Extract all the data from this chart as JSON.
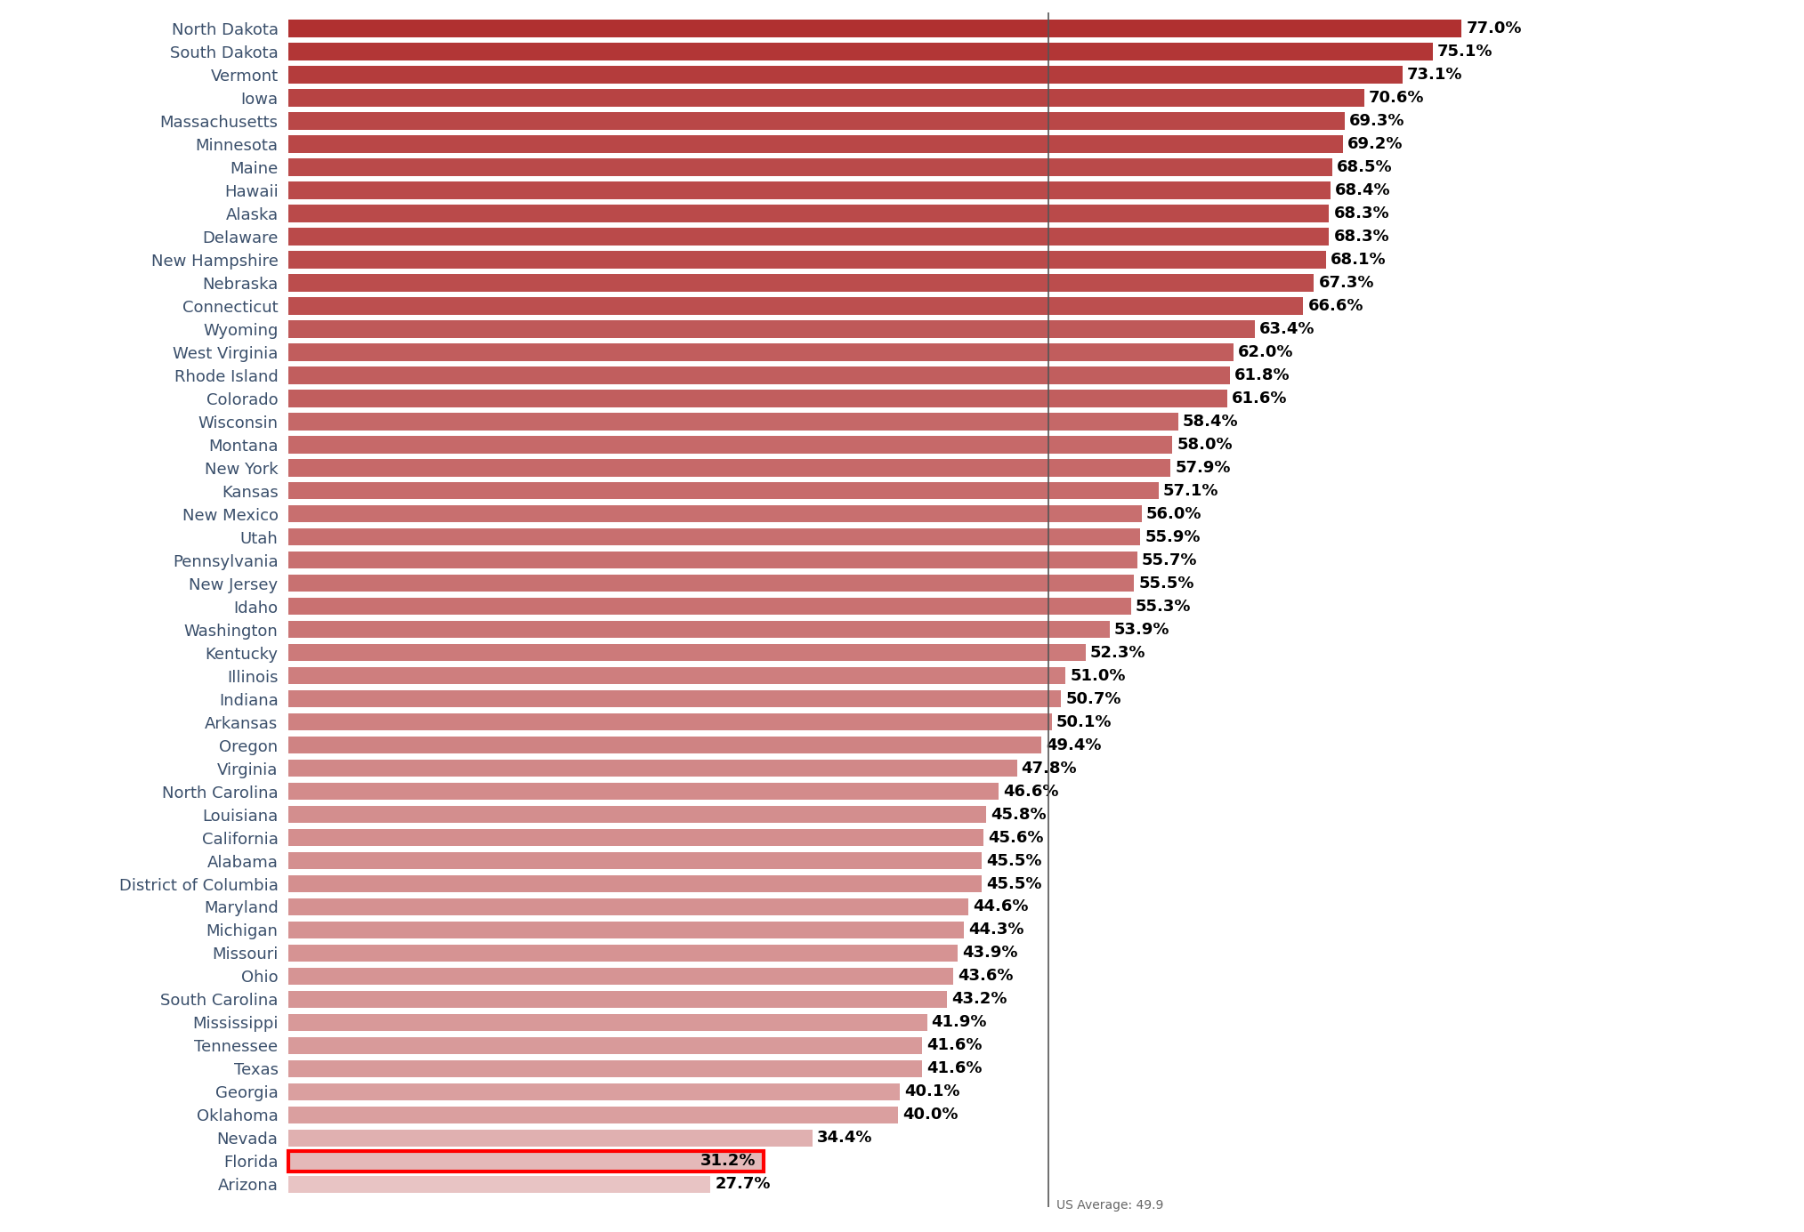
{
  "states": [
    "North Dakota",
    "South Dakota",
    "Vermont",
    "Iowa",
    "Massachusetts",
    "Minnesota",
    "Maine",
    "Hawaii",
    "Alaska",
    "Delaware",
    "New Hampshire",
    "Nebraska",
    "Connecticut",
    "Wyoming",
    "West Virginia",
    "Rhode Island",
    "Colorado",
    "Wisconsin",
    "Montana",
    "New York",
    "Kansas",
    "New Mexico",
    "Utah",
    "Pennsylvania",
    "New Jersey",
    "Idaho",
    "Washington",
    "Kentucky",
    "Illinois",
    "Indiana",
    "Arkansas",
    "Oregon",
    "Virginia",
    "North Carolina",
    "Louisiana",
    "California",
    "Alabama",
    "District of Columbia",
    "Maryland",
    "Michigan",
    "Missouri",
    "Ohio",
    "South Carolina",
    "Mississippi",
    "Tennessee",
    "Texas",
    "Georgia",
    "Oklahoma",
    "Nevada",
    "Florida",
    "Arizona"
  ],
  "values": [
    77.0,
    75.1,
    73.1,
    70.6,
    69.3,
    69.2,
    68.5,
    68.4,
    68.3,
    68.3,
    68.1,
    67.3,
    66.6,
    63.4,
    62.0,
    61.8,
    61.6,
    58.4,
    58.0,
    57.9,
    57.1,
    56.0,
    55.9,
    55.7,
    55.5,
    55.3,
    53.9,
    52.3,
    51.0,
    50.7,
    50.1,
    49.4,
    47.8,
    46.6,
    45.8,
    45.6,
    45.5,
    45.5,
    44.6,
    44.3,
    43.9,
    43.6,
    43.2,
    41.9,
    41.6,
    41.6,
    40.1,
    40.0,
    34.4,
    31.2,
    27.7
  ],
  "us_average": 49.9,
  "highlight_state": "Florida",
  "background_color": "#ffffff",
  "label_color": "#3a4f6b",
  "label_fontsize": 13,
  "value_fontsize": 13,
  "bar_color_high_r": 176,
  "bar_color_high_g": 48,
  "bar_color_high_b": 48,
  "bar_color_low_r": 232,
  "bar_color_low_g": 196,
  "bar_color_low_b": 196,
  "bar_min_val": 27.7,
  "bar_max_val": 77.0,
  "us_avg_line_color": "#555555",
  "florida_box_color": "red",
  "bar_height": 0.75
}
